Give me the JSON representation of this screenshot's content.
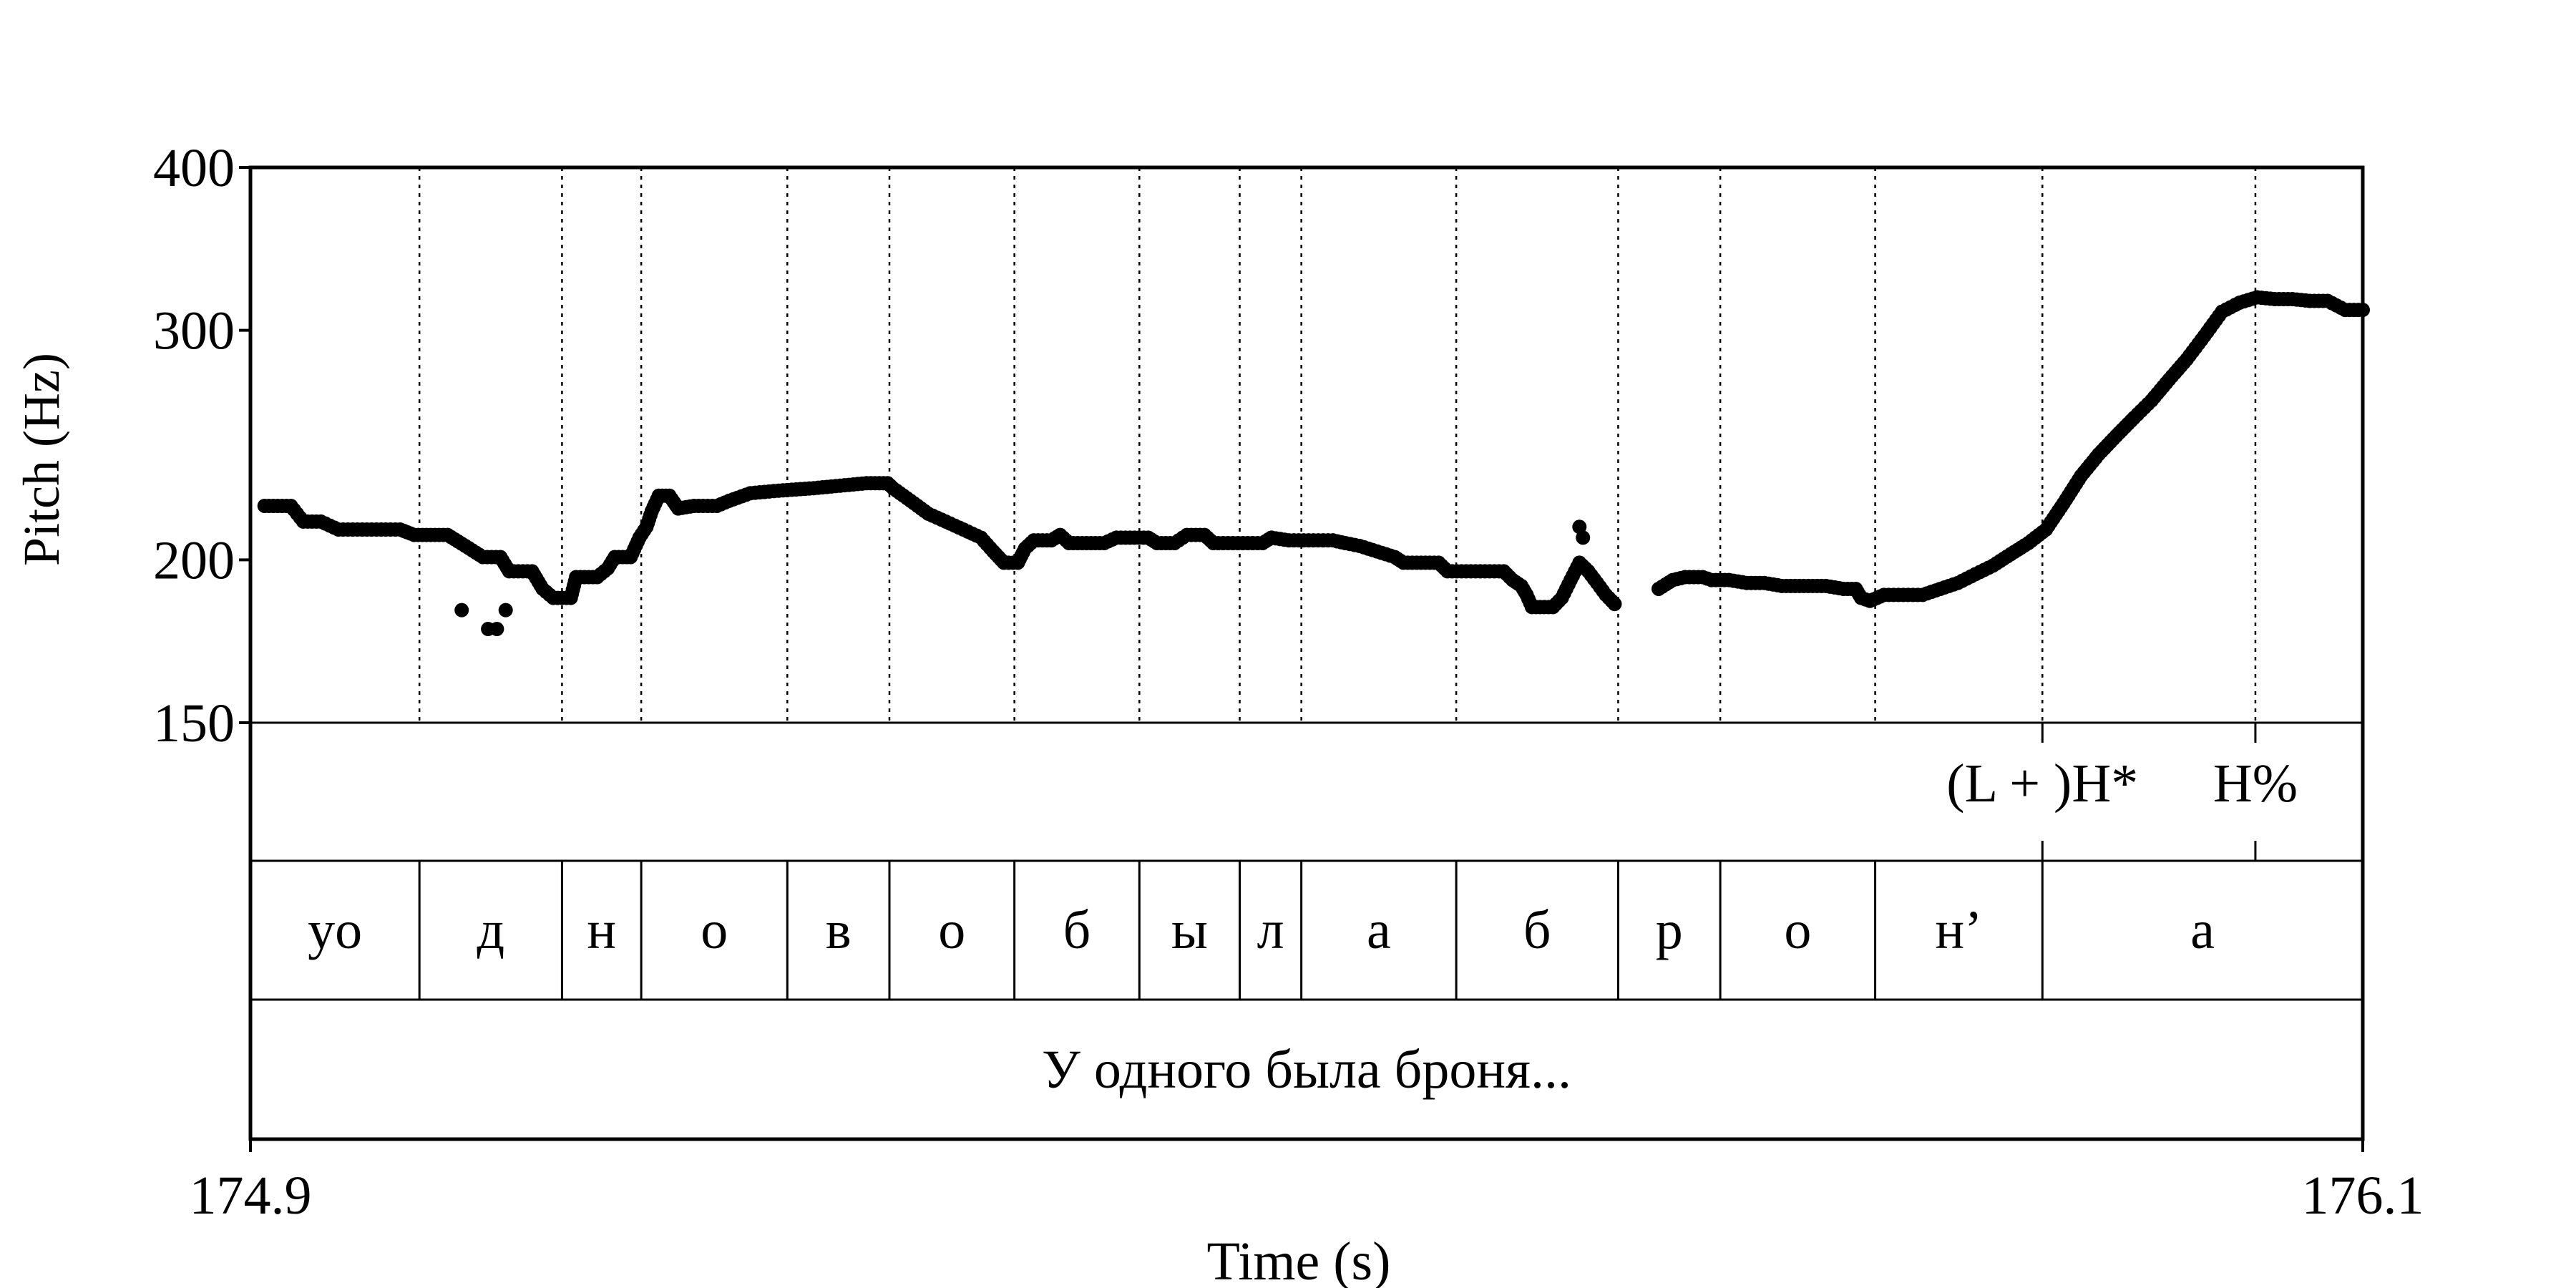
{
  "chart_data": {
    "type": "scatter",
    "xlabel": "Time (s)",
    "ylabel": "Pitch (Hz)",
    "xlim": [
      174.9,
      176.1
    ],
    "ylim": [
      150,
      400
    ],
    "y_scale": "log",
    "x_ticks": [
      "174.9",
      "176.1"
    ],
    "y_ticks": [
      {
        "value": 400,
        "label": "400"
      },
      {
        "value": 300,
        "label": "300"
      },
      {
        "value": 200,
        "label": "200"
      },
      {
        "value": 150,
        "label": "150"
      }
    ],
    "segment_boundaries": [
      174.996,
      175.077,
      175.122,
      175.205,
      175.263,
      175.334,
      175.405,
      175.462,
      175.497,
      175.585,
      175.677,
      175.735,
      175.823,
      175.918,
      176.039
    ],
    "point_marks": [
      {
        "label": "(L + )H*",
        "time": 175.918
      },
      {
        "label": "H%",
        "time": 176.039
      }
    ],
    "segments": [
      {
        "label": "yo",
        "start": 174.9,
        "end": 174.996
      },
      {
        "label": "д",
        "start": 174.996,
        "end": 175.077
      },
      {
        "label": "н",
        "start": 175.077,
        "end": 175.122
      },
      {
        "label": "о",
        "start": 175.122,
        "end": 175.205
      },
      {
        "label": "в",
        "start": 175.205,
        "end": 175.263
      },
      {
        "label": "о",
        "start": 175.263,
        "end": 175.334
      },
      {
        "label": "б",
        "start": 175.334,
        "end": 175.405
      },
      {
        "label": "ы",
        "start": 175.405,
        "end": 175.462
      },
      {
        "label": "л",
        "start": 175.462,
        "end": 175.497
      },
      {
        "label": "а",
        "start": 175.497,
        "end": 175.585
      },
      {
        "label": "б",
        "start": 175.585,
        "end": 175.677
      },
      {
        "label": "р",
        "start": 175.677,
        "end": 175.735
      },
      {
        "label": "о",
        "start": 175.735,
        "end": 175.823
      },
      {
        "label": "н’",
        "start": 175.823,
        "end": 175.918
      },
      {
        "label": "а",
        "start": 175.918,
        "end": 176.1
      }
    ],
    "sentence": "У одного была броня...",
    "contour": [
      [
        [
          174.908,
          220
        ],
        [
          174.923,
          220
        ],
        [
          174.93,
          214
        ],
        [
          174.94,
          214
        ],
        [
          174.95,
          211
        ],
        [
          174.985,
          211
        ],
        [
          174.993,
          209
        ],
        [
          175.0,
          209
        ],
        [
          175.012,
          209
        ],
        [
          175.022,
          205
        ],
        [
          175.032,
          201
        ],
        [
          175.042,
          201
        ],
        [
          175.047,
          196
        ],
        [
          175.06,
          196
        ],
        [
          175.066,
          190
        ],
        [
          175.072,
          187
        ],
        [
          175.082,
          187
        ],
        [
          175.085,
          194
        ],
        [
          175.097,
          194
        ],
        [
          175.103,
          197
        ],
        [
          175.107,
          201
        ],
        [
          175.116,
          201
        ],
        [
          175.121,
          208
        ],
        [
          175.125,
          212
        ],
        [
          175.128,
          218
        ],
        [
          175.132,
          224
        ],
        [
          175.138,
          224
        ],
        [
          175.143,
          219
        ],
        [
          175.152,
          220
        ],
        [
          175.165,
          220
        ],
        [
          175.172,
          222
        ],
        [
          175.184,
          225
        ],
        [
          175.2,
          226
        ],
        [
          175.22,
          227
        ],
        [
          175.235,
          228
        ],
        [
          175.25,
          229
        ],
        [
          175.262,
          229
        ],
        [
          175.265,
          227
        ],
        [
          175.275,
          222
        ],
        [
          175.285,
          217
        ],
        [
          175.295,
          214
        ],
        [
          175.305,
          211
        ],
        [
          175.315,
          208
        ],
        [
          175.322,
          203
        ],
        [
          175.328,
          199
        ],
        [
          175.336,
          199
        ],
        [
          175.34,
          204
        ],
        [
          175.345,
          207
        ],
        [
          175.355,
          207
        ],
        [
          175.36,
          209
        ],
        [
          175.365,
          206
        ],
        [
          175.385,
          206
        ],
        [
          175.392,
          208
        ],
        [
          175.41,
          208
        ],
        [
          175.415,
          206
        ],
        [
          175.425,
          206
        ],
        [
          175.432,
          209
        ],
        [
          175.442,
          209
        ],
        [
          175.447,
          206
        ],
        [
          175.475,
          206
        ],
        [
          175.48,
          208
        ],
        [
          175.49,
          207
        ],
        [
          175.515,
          207
        ],
        [
          175.522,
          206
        ],
        [
          175.53,
          205
        ],
        [
          175.54,
          203
        ],
        [
          175.55,
          201
        ],
        [
          175.555,
          199
        ],
        [
          175.565,
          199
        ],
        [
          175.575,
          199
        ],
        [
          175.58,
          196
        ],
        [
          175.612,
          196
        ],
        [
          175.617,
          193
        ],
        [
          175.622,
          191
        ],
        [
          175.625,
          188
        ],
        [
          175.628,
          184
        ],
        [
          175.635,
          184
        ],
        [
          175.64,
          184
        ],
        [
          175.645,
          187
        ],
        [
          175.65,
          193
        ],
        [
          175.655,
          199
        ],
        [
          175.66,
          196
        ],
        [
          175.665,
          192
        ],
        [
          175.67,
          188
        ],
        [
          175.675,
          185
        ]
      ],
      [
        [
          175.7,
          190
        ],
        [
          175.708,
          193
        ],
        [
          175.715,
          194
        ],
        [
          175.725,
          194
        ],
        [
          175.73,
          193
        ],
        [
          175.74,
          193
        ],
        [
          175.75,
          192
        ],
        [
          175.76,
          192
        ],
        [
          175.77,
          191
        ],
        [
          175.78,
          191
        ],
        [
          175.795,
          191
        ],
        [
          175.805,
          190
        ],
        [
          175.812,
          190
        ],
        [
          175.815,
          187
        ],
        [
          175.82,
          186
        ],
        [
          175.828,
          188
        ],
        [
          175.85,
          188
        ],
        [
          175.86,
          190
        ],
        [
          175.87,
          192
        ],
        [
          175.88,
          195
        ],
        [
          175.89,
          198
        ],
        [
          175.9,
          202
        ],
        [
          175.91,
          206
        ],
        [
          175.92,
          211
        ],
        [
          175.93,
          221
        ],
        [
          175.94,
          232
        ],
        [
          175.95,
          241
        ],
        [
          175.96,
          249
        ],
        [
          175.97,
          257
        ],
        [
          175.98,
          265
        ],
        [
          175.99,
          275
        ],
        [
          176.0,
          285
        ],
        [
          176.01,
          297
        ],
        [
          176.02,
          310
        ],
        [
          176.03,
          315
        ],
        [
          176.04,
          318
        ],
        [
          176.05,
          317
        ],
        [
          176.06,
          317
        ],
        [
          176.07,
          316
        ],
        [
          176.08,
          316
        ],
        [
          176.09,
          311
        ],
        [
          176.1,
          311
        ]
      ]
    ],
    "outliers": [
      [
        175.02,
        183
      ],
      [
        175.035,
        177
      ],
      [
        175.04,
        177
      ],
      [
        175.045,
        183
      ],
      [
        175.655,
        212
      ],
      [
        175.657,
        208
      ]
    ]
  }
}
